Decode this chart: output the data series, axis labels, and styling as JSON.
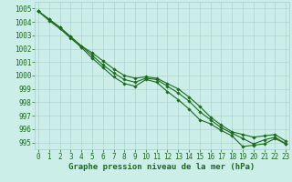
{
  "x": [
    0,
    1,
    2,
    3,
    4,
    5,
    6,
    7,
    8,
    9,
    10,
    11,
    12,
    13,
    14,
    15,
    16,
    17,
    18,
    19,
    20,
    21,
    22,
    23
  ],
  "line1": [
    1004.8,
    1004.2,
    1003.6,
    1002.9,
    1002.2,
    1001.5,
    1000.8,
    1000.2,
    999.7,
    999.5,
    999.8,
    999.7,
    999.2,
    998.7,
    998.1,
    997.3,
    996.7,
    996.1,
    995.7,
    995.3,
    994.9,
    995.2,
    995.4,
    994.9
  ],
  "line2": [
    1004.8,
    1004.1,
    1003.5,
    1002.8,
    1002.1,
    1001.3,
    1000.6,
    999.9,
    999.4,
    999.2,
    999.7,
    999.5,
    998.8,
    998.2,
    997.5,
    996.7,
    996.4,
    995.9,
    995.5,
    994.7,
    994.8,
    994.9,
    995.3,
    994.9
  ],
  "line3": [
    1004.8,
    1004.2,
    1003.6,
    1002.9,
    1002.2,
    1001.7,
    1001.1,
    1000.5,
    1000.0,
    999.8,
    999.9,
    999.8,
    999.4,
    999.0,
    998.4,
    997.7,
    996.9,
    996.3,
    995.8,
    995.6,
    995.4,
    995.5,
    995.6,
    995.1
  ],
  "ylim": [
    994.5,
    1005.5
  ],
  "yticks": [
    995,
    996,
    997,
    998,
    999,
    1000,
    1001,
    1002,
    1003,
    1004,
    1005
  ],
  "xticks": [
    0,
    1,
    2,
    3,
    4,
    5,
    6,
    7,
    8,
    9,
    10,
    11,
    12,
    13,
    14,
    15,
    16,
    17,
    18,
    19,
    20,
    21,
    22,
    23
  ],
  "line_color": "#1a6b1a",
  "marker": "D",
  "marker_size": 1.8,
  "bg_color": "#cceee8",
  "grid_color": "#aacccc",
  "xlabel": "Graphe pression niveau de la mer (hPa)",
  "xlabel_color": "#1a6b1a",
  "tick_color": "#1a6b1a",
  "tick_fontsize": 5.5,
  "xlabel_fontsize": 6.5,
  "line_width": 0.8,
  "xlim": [
    -0.3,
    23.3
  ]
}
